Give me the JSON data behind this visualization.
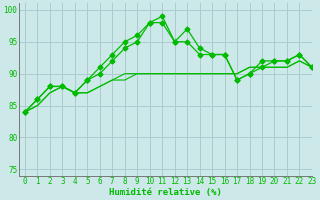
{
  "xlabel": "Humidité relative (%)",
  "bg_color": "#cce8e8",
  "grid_color": "#aacccc",
  "line_color": "#00bb00",
  "xlim": [
    -0.5,
    23
  ],
  "ylim": [
    74,
    101
  ],
  "yticks": [
    75,
    80,
    85,
    90,
    95,
    100
  ],
  "xticks": [
    0,
    1,
    2,
    3,
    4,
    5,
    6,
    7,
    8,
    9,
    10,
    11,
    12,
    13,
    14,
    15,
    16,
    17,
    18,
    19,
    20,
    21,
    22,
    23
  ],
  "series": [
    [
      84,
      86,
      88,
      88,
      87,
      89,
      91,
      93,
      95,
      96,
      98,
      99,
      95,
      97,
      94,
      93,
      93,
      89,
      90,
      92,
      92,
      92,
      93,
      91
    ],
    [
      84,
      86,
      88,
      88,
      87,
      89,
      90,
      92,
      94,
      95,
      98,
      98,
      95,
      95,
      93,
      93,
      93,
      89,
      90,
      91,
      92,
      92,
      93,
      91
    ],
    [
      84,
      85,
      87,
      88,
      87,
      87,
      88,
      89,
      90,
      90,
      90,
      90,
      90,
      90,
      90,
      90,
      90,
      90,
      91,
      91,
      91,
      91,
      92,
      91
    ],
    [
      84,
      85,
      87,
      88,
      87,
      87,
      88,
      89,
      89,
      90,
      90,
      90,
      90,
      90,
      90,
      90,
      90,
      90,
      91,
      91,
      91,
      91,
      92,
      91
    ]
  ],
  "marker_series": [
    0,
    1
  ],
  "marker": "D",
  "marker_size": 2.5,
  "lw_marker": 0.9,
  "lw_flat": 0.8
}
